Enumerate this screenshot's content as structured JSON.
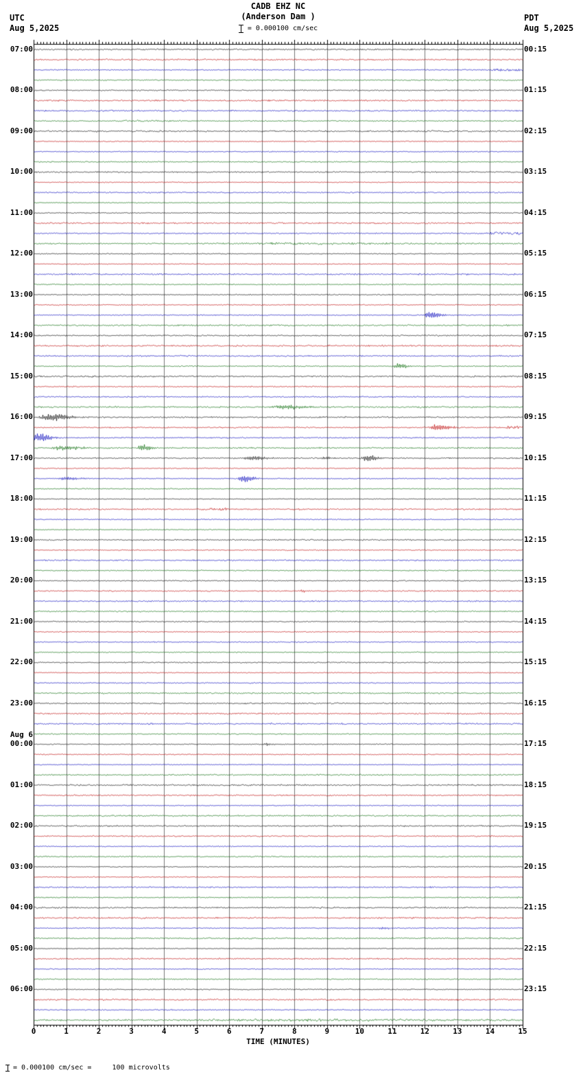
{
  "header": {
    "station": "CADB EHZ NC",
    "location": "(Anderson Dam )",
    "scale_label": "= 0.000100 cm/sec",
    "left_tz": "UTC",
    "left_date": "Aug 5,2025",
    "right_tz": "PDT",
    "right_date": "Aug 5,2025"
  },
  "footer": {
    "axis_label": "TIME (MINUTES)",
    "scale_note": "= 0.000100 cm/sec =     100 microvolts"
  },
  "chart_data": {
    "type": "line",
    "title": "CADB EHZ NC (Anderson Dam) helicorder, 24 hours of 15-minute traces",
    "xlabel": "TIME (MINUTES)",
    "x_min": 0,
    "x_max": 15,
    "x_ticks": [
      "0",
      "1",
      "2",
      "3",
      "4",
      "5",
      "6",
      "7",
      "8",
      "9",
      "10",
      "11",
      "12",
      "13",
      "14",
      "15"
    ],
    "rows": 96,
    "minutes_per_row": 15,
    "start_time_utc": "Aug 5,2025 07:00",
    "end_time_utc": "Aug 6,2025 07:00",
    "trace_colors": [
      "#000000",
      "#bb0000",
      "#0000bb",
      "#006600"
    ],
    "left_hour_labels": [
      "07:00",
      "08:00",
      "09:00",
      "10:00",
      "11:00",
      "12:00",
      "13:00",
      "14:00",
      "15:00",
      "16:00",
      "17:00",
      "18:00",
      "19:00",
      "20:00",
      "21:00",
      "22:00",
      "23:00",
      "00:00",
      "01:00",
      "02:00",
      "03:00",
      "04:00",
      "05:00",
      "06:00"
    ],
    "right_hour_labels": [
      "00:15",
      "01:15",
      "02:15",
      "03:15",
      "04:15",
      "05:15",
      "06:15",
      "07:15",
      "08:15",
      "09:15",
      "10:15",
      "11:15",
      "12:15",
      "13:15",
      "14:15",
      "15:15",
      "16:15",
      "17:15",
      "18:15",
      "19:15",
      "20:15",
      "21:15",
      "22:15",
      "23:15"
    ],
    "date_marker": {
      "text": "Aug 6",
      "row": 68
    },
    "events": [
      {
        "row": 2,
        "t": 14.3,
        "amp": 1.6,
        "dur": 0.9,
        "kind": "noise"
      },
      {
        "row": 7,
        "t": 2.9,
        "amp": 1.1,
        "dur": 1.1,
        "kind": "noise"
      },
      {
        "row": 18,
        "t": 14.3,
        "amp": 1.7,
        "dur": 0.9,
        "kind": "noise"
      },
      {
        "row": 19,
        "t": 7.5,
        "amp": 1.0,
        "dur": 6.0,
        "kind": "noise"
      },
      {
        "row": 26,
        "t": 12.1,
        "amp": 5.0,
        "dur": 0.3,
        "kind": "burst"
      },
      {
        "row": 31,
        "t": 11.15,
        "amp": 4.0,
        "dur": 0.28,
        "kind": "burst"
      },
      {
        "row": 35,
        "t": 7.6,
        "amp": 3.0,
        "dur": 0.7,
        "kind": "burst"
      },
      {
        "row": 36,
        "t": 0.45,
        "amp": 5.5,
        "dur": 0.55,
        "kind": "burst"
      },
      {
        "row": 37,
        "t": 12.35,
        "amp": 5.0,
        "dur": 0.38,
        "kind": "burst"
      },
      {
        "row": 37,
        "t": 14.6,
        "amp": 2.2,
        "dur": 0.45,
        "kind": "noise"
      },
      {
        "row": 38,
        "t": 0.12,
        "amp": 7.0,
        "dur": 0.3,
        "kind": "burst"
      },
      {
        "row": 39,
        "t": 0.85,
        "amp": 3.5,
        "dur": 0.55,
        "kind": "burst"
      },
      {
        "row": 39,
        "t": 3.3,
        "amp": 6.0,
        "dur": 0.22,
        "kind": "burst"
      },
      {
        "row": 40,
        "t": 6.6,
        "amp": 3.2,
        "dur": 0.5,
        "kind": "burst"
      },
      {
        "row": 40,
        "t": 8.9,
        "amp": 1.8,
        "dur": 0.3,
        "kind": "burst"
      },
      {
        "row": 40,
        "t": 10.2,
        "amp": 5.0,
        "dur": 0.28,
        "kind": "burst"
      },
      {
        "row": 42,
        "t": 0.95,
        "amp": 2.8,
        "dur": 0.4,
        "kind": "burst"
      },
      {
        "row": 42,
        "t": 6.4,
        "amp": 6.0,
        "dur": 0.26,
        "kind": "burst"
      },
      {
        "row": 45,
        "t": 5.5,
        "amp": 1.3,
        "dur": 0.5,
        "kind": "noise"
      },
      {
        "row": 53,
        "t": 8.25,
        "amp": 2.2,
        "dur": 0.06,
        "kind": "burst"
      },
      {
        "row": 68,
        "t": 7.1,
        "amp": 1.8,
        "dur": 0.25,
        "kind": "burst"
      },
      {
        "row": 86,
        "t": 10.65,
        "amp": 2.4,
        "dur": 0.18,
        "kind": "burst"
      },
      {
        "row": 95,
        "t": 7.5,
        "amp": 1.1,
        "dur": 6.5,
        "kind": "noise"
      }
    ]
  }
}
